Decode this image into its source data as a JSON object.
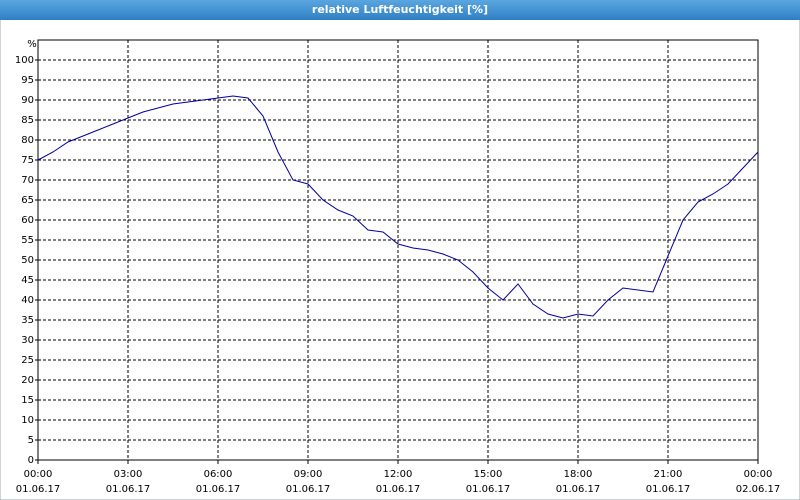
{
  "chart_data": {
    "type": "line",
    "title": "relative Luftfeuchtigkeit [%]",
    "y_unit": "%",
    "x": [
      0,
      0.5,
      1,
      1.5,
      2,
      2.5,
      3,
      3.5,
      4,
      4.5,
      5,
      5.5,
      6,
      6.5,
      7,
      7.5,
      8,
      8.5,
      9,
      9.5,
      10,
      10.5,
      11,
      11.5,
      12,
      12.5,
      13,
      13.5,
      14,
      14.5,
      15,
      15.5,
      16,
      16.5,
      17,
      17.5,
      18,
      18.5,
      19,
      19.5,
      20,
      20.5,
      21,
      21.5,
      22,
      22.5,
      23,
      23.5,
      24
    ],
    "series": [
      {
        "name": "relative Luftfeuchtigkeit",
        "color": "#0000a0",
        "values": [
          75,
          77,
          79.5,
          81,
          82.5,
          84,
          85.5,
          87,
          88,
          89,
          89.5,
          90,
          90.5,
          91,
          90.5,
          86,
          77,
          70,
          69,
          65,
          62.5,
          61,
          57.5,
          57,
          54,
          53,
          52.5,
          51.5,
          50,
          47,
          43,
          40,
          44,
          39,
          36.5,
          35.5,
          36.5,
          36,
          40,
          43,
          42.5,
          42,
          51,
          60,
          64.5,
          66.5,
          69,
          73,
          77
        ]
      }
    ],
    "xlim": [
      0,
      24
    ],
    "ylim": [
      0,
      105
    ],
    "xticks": [
      {
        "value": 0,
        "label": "00:00"
      },
      {
        "value": 3,
        "label": "03:00"
      },
      {
        "value": 6,
        "label": "06:00"
      },
      {
        "value": 9,
        "label": "09:00"
      },
      {
        "value": 12,
        "label": "12:00"
      },
      {
        "value": 15,
        "label": "15:00"
      },
      {
        "value": 18,
        "label": "18:00"
      },
      {
        "value": 21,
        "label": "21:00"
      },
      {
        "value": 24,
        "label": "00:00"
      }
    ],
    "xtick_dates": [
      "01.06.17",
      "01.06.17",
      "01.06.17",
      "01.06.17",
      "01.06.17",
      "01.06.17",
      "01.06.17",
      "01.06.17",
      "02.06.17"
    ],
    "yticks": [
      0,
      5,
      10,
      15,
      20,
      25,
      30,
      35,
      40,
      45,
      50,
      55,
      60,
      65,
      70,
      75,
      80,
      85,
      90,
      95,
      100
    ],
    "grid": true
  }
}
